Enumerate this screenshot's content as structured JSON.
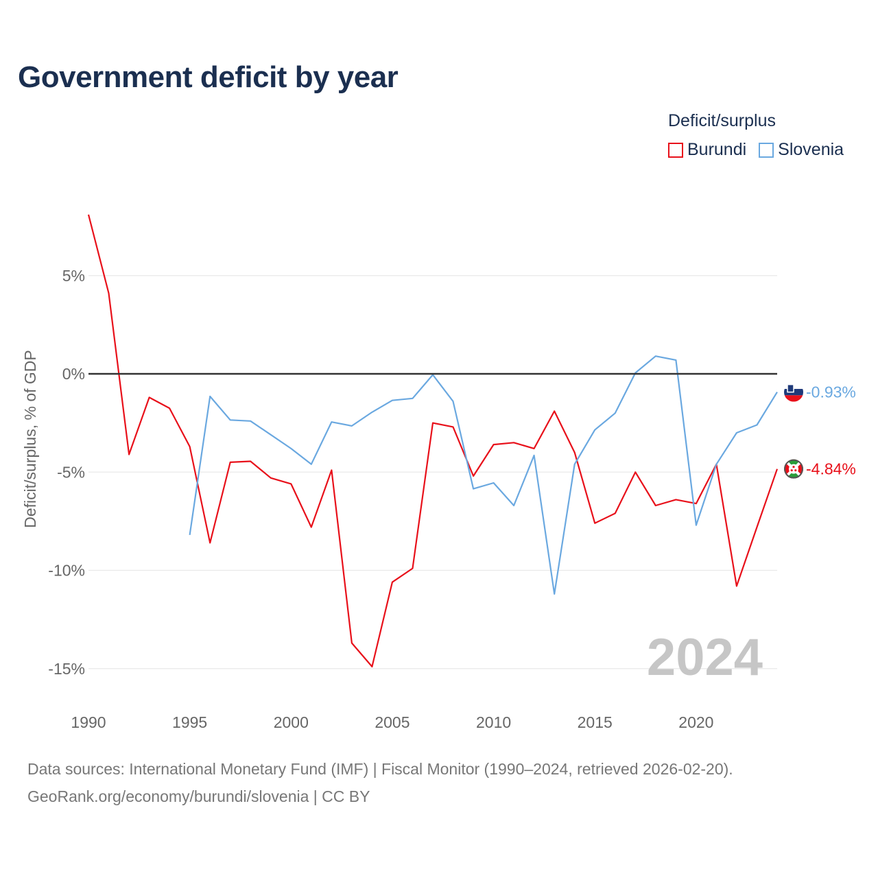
{
  "title": "Government deficit by year",
  "legend": {
    "title": "Deficit/surplus",
    "items": [
      {
        "label": "Burundi",
        "color": "#e8101a"
      },
      {
        "label": "Slovenia",
        "color": "#6aa8e0"
      }
    ]
  },
  "footer": {
    "line1": "Data sources: International Monetary Fund (IMF) | Fiscal Monitor (1990–2024, retrieved 2026-02-20).",
    "line2": "GeoRank.org/economy/burundi/slovenia | CC BY"
  },
  "chart_data": {
    "type": "line",
    "title": "Government deficit by year",
    "xlabel": "",
    "ylabel": "Deficit/surplus, % of GDP",
    "xlim": [
      1990,
      2024
    ],
    "ylim": [
      -16.5,
      8.5
    ],
    "yticks": [
      5,
      0,
      -5,
      -10,
      -15
    ],
    "ytick_labels": [
      "5%",
      "0%",
      "-5%",
      "-10%",
      "-15%"
    ],
    "xticks": [
      1990,
      1995,
      2000,
      2005,
      2010,
      2015,
      2020
    ],
    "xtick_labels": [
      "1990",
      "1995",
      "2000",
      "2005",
      "2010",
      "2015",
      "2020"
    ],
    "watermark_year": "2024",
    "series": [
      {
        "name": "Burundi",
        "color": "#e8101a",
        "end_label": "-4.84%",
        "points": [
          [
            1990,
            8.1
          ],
          [
            1991,
            4.1
          ],
          [
            1992,
            -4.1
          ],
          [
            1993,
            -1.2
          ],
          [
            1994,
            -1.75
          ],
          [
            1995,
            -3.7
          ],
          [
            1996,
            -8.6
          ],
          [
            1997,
            -4.5
          ],
          [
            1998,
            -4.45
          ],
          [
            1999,
            -5.3
          ],
          [
            2000,
            -5.6
          ],
          [
            2001,
            -7.8
          ],
          [
            2002,
            -4.9
          ],
          [
            2003,
            -13.7
          ],
          [
            2004,
            -14.9
          ],
          [
            2005,
            -10.6
          ],
          [
            2006,
            -9.9
          ],
          [
            2007,
            -2.5
          ],
          [
            2008,
            -2.7
          ],
          [
            2009,
            -5.2
          ],
          [
            2010,
            -3.6
          ],
          [
            2011,
            -3.5
          ],
          [
            2012,
            -3.8
          ],
          [
            2013,
            -1.9
          ],
          [
            2014,
            -4.0
          ],
          [
            2015,
            -7.6
          ],
          [
            2016,
            -7.1
          ],
          [
            2017,
            -5.0
          ],
          [
            2018,
            -6.7
          ],
          [
            2019,
            -6.4
          ],
          [
            2020,
            -6.6
          ],
          [
            2021,
            -4.6
          ],
          [
            2022,
            -10.8
          ],
          [
            2023,
            -7.8
          ],
          [
            2024,
            -4.84
          ]
        ]
      },
      {
        "name": "Slovenia",
        "color": "#6aa8e0",
        "end_label": "-0.93%",
        "points": [
          [
            1995,
            -8.2
          ],
          [
            1996,
            -1.15
          ],
          [
            1997,
            -2.35
          ],
          [
            1998,
            -2.4
          ],
          [
            1999,
            -3.1
          ],
          [
            2000,
            -3.8
          ],
          [
            2001,
            -4.6
          ],
          [
            2002,
            -2.45
          ],
          [
            2003,
            -2.65
          ],
          [
            2004,
            -1.95
          ],
          [
            2005,
            -1.35
          ],
          [
            2006,
            -1.25
          ],
          [
            2007,
            -0.05
          ],
          [
            2008,
            -1.4
          ],
          [
            2009,
            -5.85
          ],
          [
            2010,
            -5.55
          ],
          [
            2011,
            -6.7
          ],
          [
            2012,
            -4.15
          ],
          [
            2013,
            -11.2
          ],
          [
            2014,
            -4.6
          ],
          [
            2015,
            -2.85
          ],
          [
            2016,
            -2.0
          ],
          [
            2017,
            0.05
          ],
          [
            2018,
            0.9
          ],
          [
            2019,
            0.7
          ],
          [
            2020,
            -7.7
          ],
          [
            2021,
            -4.6
          ],
          [
            2022,
            -3.0
          ],
          [
            2023,
            -2.6
          ],
          [
            2024,
            -0.93
          ]
        ]
      }
    ]
  }
}
